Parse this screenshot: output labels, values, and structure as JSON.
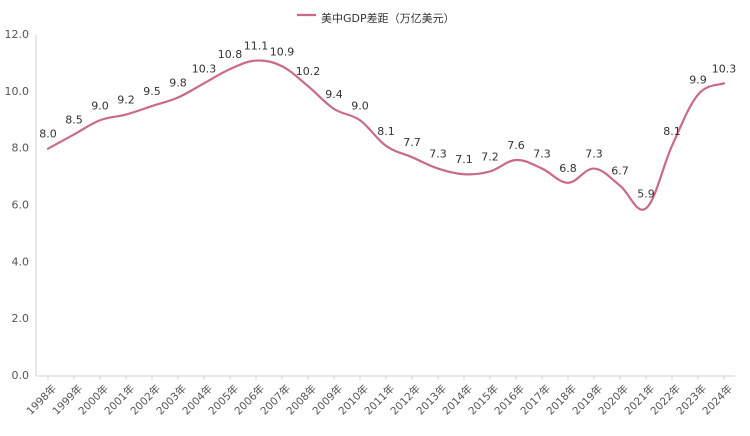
{
  "chart_data": {
    "type": "line",
    "title": "",
    "legend": {
      "entries": [
        "美中GDP差距（万亿美元）"
      ],
      "placement": "top-center"
    },
    "xlabel": "",
    "ylabel": "",
    "ylim": [
      0,
      12
    ],
    "yticks": [
      "0.0",
      "2.0",
      "4.0",
      "6.0",
      "8.0",
      "10.0",
      "12.0"
    ],
    "grid": false,
    "smooth": true,
    "colors": {
      "line": "#c96a8a",
      "axis": "#d0d0d0",
      "text": "#333333",
      "tick_text": "#555555"
    },
    "categories": [
      "1998年",
      "1999年",
      "2000年",
      "2001年",
      "2002年",
      "2003年",
      "2004年",
      "2005年",
      "2006年",
      "2007年",
      "2008年",
      "2009年",
      "2010年",
      "2011年",
      "2012年",
      "2013年",
      "2014年",
      "2015年",
      "2016年",
      "2017年",
      "2018年",
      "2019年",
      "2020年",
      "2021年",
      "2022年",
      "2023年",
      "2024年"
    ],
    "series": [
      {
        "name": "美中GDP差距（万亿美元）",
        "values": [
          8.0,
          8.5,
          9.0,
          9.2,
          9.5,
          9.8,
          10.3,
          10.8,
          11.1,
          10.9,
          10.2,
          9.4,
          9.0,
          8.1,
          7.7,
          7.3,
          7.1,
          7.2,
          7.6,
          7.3,
          6.8,
          7.3,
          6.7,
          5.9,
          8.1,
          9.9,
          10.3
        ],
        "labels": [
          "8.0",
          "8.5",
          "9.0",
          "9.2",
          "9.5",
          "9.8",
          "10.3",
          "10.8",
          "11.1",
          "10.9",
          "10.2",
          "9.4",
          "9.0",
          "8.1",
          "7.7",
          "7.3",
          "7.1",
          "7.2",
          "7.6",
          "7.3",
          "6.8",
          "7.3",
          "6.7",
          "5.9",
          "8.1",
          "9.9",
          "10.3"
        ]
      }
    ]
  }
}
